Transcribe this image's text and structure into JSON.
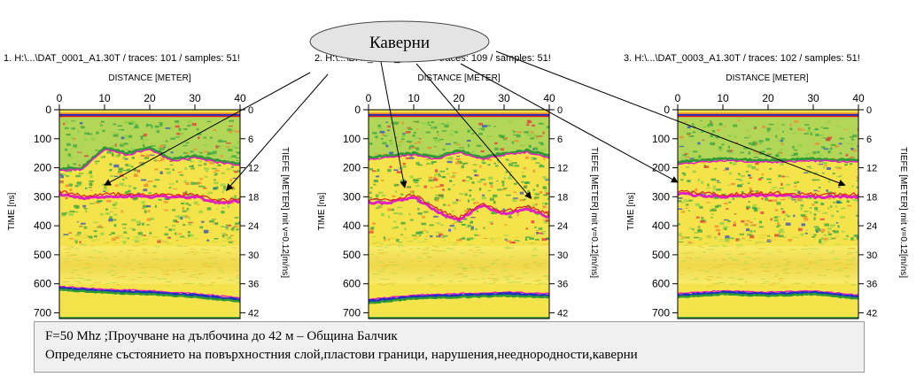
{
  "caption": {
    "line1": "F=50 Mhz  ;Проучване на дълбочина до 42 м – Община Балчик",
    "line2": "Определяне състоянието на повърхностния слой,пластови граници, нарушения,нееднородности,каверни"
  },
  "callout": {
    "label": "Каверни"
  },
  "colors": {
    "background": "#ffffff",
    "callout_fill": "#e4e4e4",
    "caption_fill": "#f0f0f0",
    "radargram_yellow": "#f4e34a",
    "radargram_green": "#2e9a35",
    "reflector_magenta": "#e020c0",
    "reflector_blue": "#2030c0",
    "reflector_red": "#e02020"
  },
  "chart_data": [
    {
      "type": "heatmap",
      "title": "1. H:\\...\\DAT_0001_A1.30T / traces: 101 / samples: 51!",
      "xlabel": "DISTANCE [METER]",
      "ylabel": "TIME [ns]",
      "y2label": "TIEFE [METER] mit v=0.12[m/ns]",
      "xlim": [
        0,
        40
      ],
      "ylim": [
        0,
        720
      ],
      "y2lim": [
        0,
        43.2
      ],
      "xticks": [
        "0",
        "10",
        "20",
        "30",
        "40"
      ],
      "yticks": [
        "0",
        "100",
        "200",
        "300",
        "400",
        "500",
        "600",
        "700"
      ],
      "y2ticks": [
        "0",
        "6",
        "12",
        "18",
        "24",
        "30",
        "36",
        "42"
      ],
      "reflectors_ns": {
        "surface": 15,
        "upper_layer": [
          [
            0,
            205
          ],
          [
            5,
            200
          ],
          [
            10,
            130
          ],
          [
            15,
            150
          ],
          [
            20,
            130
          ],
          [
            25,
            170
          ],
          [
            30,
            160
          ],
          [
            35,
            175
          ],
          [
            40,
            185
          ]
        ],
        "cavern_layer": [
          [
            0,
            290
          ],
          [
            5,
            305
          ],
          [
            10,
            300
          ],
          [
            15,
            298
          ],
          [
            20,
            300
          ],
          [
            25,
            300
          ],
          [
            30,
            300
          ],
          [
            35,
            320
          ],
          [
            40,
            315
          ]
        ],
        "deep_layer": [
          [
            0,
            615
          ],
          [
            10,
            625
          ],
          [
            20,
            630
          ],
          [
            30,
            640
          ],
          [
            40,
            655
          ]
        ],
        "base": 718
      },
      "cavern_x_m": [
        10,
        37
      ]
    },
    {
      "type": "heatmap",
      "title": "2. H:\\...\\DAT_0002_A1.30T / traces: 109 / samples: 51!",
      "xlabel": "DISTANCE [METER]",
      "ylabel": "TIME [ns]",
      "y2label": "TIEFE [METER] mit v=0.12[m/ns]",
      "xlim": [
        0,
        40
      ],
      "ylim": [
        0,
        720
      ],
      "y2lim": [
        0,
        43.2
      ],
      "xticks": [
        "0",
        "10",
        "20",
        "30",
        "40"
      ],
      "yticks": [
        "0",
        "100",
        "200",
        "300",
        "400",
        "500",
        "600",
        "700"
      ],
      "y2ticks": [
        "0",
        "6",
        "12",
        "18",
        "24",
        "30",
        "36",
        "42"
      ],
      "reflectors_ns": {
        "surface": 15,
        "upper_layer": [
          [
            0,
            165
          ],
          [
            10,
            150
          ],
          [
            15,
            165
          ],
          [
            20,
            140
          ],
          [
            25,
            165
          ],
          [
            30,
            150
          ],
          [
            35,
            140
          ],
          [
            40,
            160
          ]
        ],
        "cavern_layer": [
          [
            5,
            320
          ],
          [
            10,
            300
          ],
          [
            15,
            350
          ],
          [
            20,
            380
          ],
          [
            25,
            330
          ],
          [
            30,
            360
          ],
          [
            35,
            340
          ],
          [
            40,
            370
          ]
        ],
        "deep_layer": [
          [
            0,
            660
          ],
          [
            10,
            645
          ],
          [
            20,
            640
          ],
          [
            30,
            635
          ],
          [
            40,
            640
          ]
        ],
        "base": 718
      },
      "cavern_x_m": [
        8,
        36
      ]
    },
    {
      "type": "heatmap",
      "title": "3. H:\\...\\DAT_0003_A1.30T / traces: 102 / samples: 51!",
      "xlabel": "DISTANCE [METER]",
      "ylabel": "TIME [ns]",
      "y2label": "TIEFE [METER] mit v=0.12[m/ns]",
      "xlim": [
        0,
        40
      ],
      "ylim": [
        0,
        720
      ],
      "y2lim": [
        0,
        43.2
      ],
      "xticks": [
        "0",
        "10",
        "20",
        "30",
        "40"
      ],
      "yticks": [
        "0",
        "100",
        "200",
        "300",
        "400",
        "500",
        "600",
        "700"
      ],
      "y2ticks": [
        "0",
        "6",
        "12",
        "18",
        "24",
        "30",
        "36",
        "42"
      ],
      "reflectors_ns": {
        "surface": 15,
        "upper_layer": [
          [
            0,
            180
          ],
          [
            10,
            170
          ],
          [
            20,
            175
          ],
          [
            30,
            170
          ],
          [
            40,
            175
          ]
        ],
        "cavern_layer": [
          [
            0,
            290
          ],
          [
            10,
            300
          ],
          [
            20,
            295
          ],
          [
            30,
            300
          ],
          [
            40,
            300
          ]
        ],
        "deep_layer": [
          [
            0,
            640
          ],
          [
            10,
            630
          ],
          [
            20,
            635
          ],
          [
            30,
            630
          ],
          [
            40,
            645
          ]
        ],
        "base": 718
      },
      "cavern_x_m": [
        0,
        37
      ]
    }
  ]
}
